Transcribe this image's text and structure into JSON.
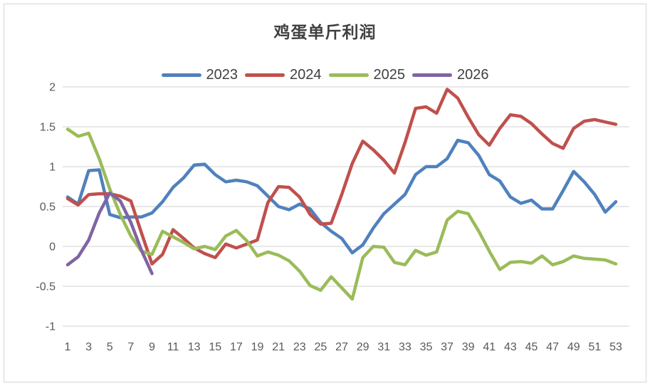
{
  "title": "鸡蛋单斤利润",
  "chart_data": {
    "type": "line",
    "title": "鸡蛋单斤利润",
    "xlabel": "",
    "ylabel": "",
    "x_unit": "week",
    "x_range": [
      1,
      53
    ],
    "x_tick_labels": [
      "1",
      "3",
      "5",
      "7",
      "9",
      "11",
      "13",
      "15",
      "17",
      "19",
      "21",
      "23",
      "25",
      "27",
      "29",
      "31",
      "33",
      "35",
      "37",
      "39",
      "41",
      "43",
      "45",
      "47",
      "49",
      "51",
      "53"
    ],
    "y_axis": {
      "min": -1,
      "max": 2,
      "step": 0.5,
      "tick_labels": [
        "2",
        "1.5",
        "1",
        "0.5",
        "0",
        "-0.5",
        "-1"
      ]
    },
    "grid": "horizontal",
    "legend_position": "top",
    "series": [
      {
        "name": "2023",
        "color": "#4F81BD",
        "values": [
          0.62,
          0.53,
          0.95,
          0.96,
          0.4,
          0.36,
          0.37,
          0.37,
          0.42,
          0.56,
          0.74,
          0.86,
          1.02,
          1.03,
          0.9,
          0.81,
          0.83,
          0.81,
          0.76,
          0.63,
          0.5,
          0.46,
          0.53,
          0.47,
          0.3,
          0.19,
          0.1,
          -0.08,
          0.02,
          0.23,
          0.41,
          0.53,
          0.65,
          0.9,
          1.0,
          1.0,
          1.1,
          1.33,
          1.3,
          1.14,
          0.9,
          0.82,
          0.62,
          0.54,
          0.58,
          0.47,
          0.47,
          0.7,
          0.94,
          0.81,
          0.65,
          0.43,
          0.56
        ]
      },
      {
        "name": "2024",
        "color": "#C0504D",
        "values": [
          0.6,
          0.52,
          0.65,
          0.66,
          0.66,
          0.63,
          0.57,
          0.17,
          -0.22,
          -0.1,
          0.21,
          0.1,
          -0.02,
          -0.09,
          -0.14,
          0.03,
          -0.02,
          0.03,
          0.08,
          0.55,
          0.75,
          0.74,
          0.62,
          0.4,
          0.28,
          0.29,
          0.65,
          1.04,
          1.32,
          1.21,
          1.08,
          0.92,
          1.3,
          1.73,
          1.75,
          1.67,
          1.97,
          1.86,
          1.62,
          1.4,
          1.27,
          1.48,
          1.65,
          1.63,
          1.54,
          1.41,
          1.29,
          1.23,
          1.48,
          1.57,
          1.59,
          1.56,
          1.53
        ]
      },
      {
        "name": "2025",
        "color": "#9BBB59",
        "values": [
          1.47,
          1.38,
          1.42,
          1.1,
          0.72,
          0.4,
          0.13,
          -0.06,
          -0.1,
          0.19,
          0.12,
          0.05,
          -0.03,
          0.0,
          -0.04,
          0.13,
          0.2,
          0.07,
          -0.12,
          -0.07,
          -0.11,
          -0.18,
          -0.31,
          -0.49,
          -0.55,
          -0.38,
          -0.52,
          -0.66,
          -0.14,
          0.0,
          -0.01,
          -0.2,
          -0.23,
          -0.05,
          -0.11,
          -0.07,
          0.33,
          0.44,
          0.41,
          0.19,
          -0.06,
          -0.29,
          -0.2,
          -0.19,
          -0.21,
          -0.12,
          -0.23,
          -0.19,
          -0.12,
          -0.15,
          -0.16,
          -0.17,
          -0.22
        ]
      },
      {
        "name": "2026",
        "color": "#8064A2",
        "values": [
          -0.23,
          -0.13,
          0.08,
          0.42,
          0.67,
          0.57,
          0.3,
          -0.05,
          -0.34
        ]
      }
    ]
  },
  "colors": {
    "grid_line": "#D9D9D9",
    "axis_text": "#595959",
    "title_text": "#404040",
    "frame_border": "#D6D6D6",
    "background": "#FFFFFF"
  }
}
